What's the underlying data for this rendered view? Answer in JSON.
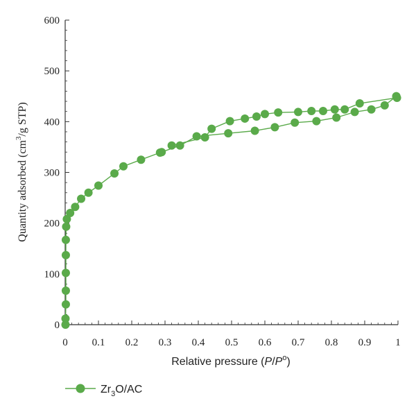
{
  "chart_data": {
    "type": "scatter",
    "xlabel_main": "Relative pressure (",
    "xlabel_p": "P",
    "xlabel_slash": "/",
    "xlabel_p0": "P",
    "xlabel_sup": "o",
    "xlabel_close": ")",
    "ylabel_main": "Quantity adsorbed (cm",
    "ylabel_sup": "3",
    "ylabel_rest": "/g STP)",
    "xlim": [
      0,
      1
    ],
    "ylim": [
      0,
      600
    ],
    "xticks": [
      0,
      0.1,
      0.2,
      0.3,
      0.4,
      0.5,
      0.6,
      0.7,
      0.8,
      0.9,
      1
    ],
    "xtick_labels": [
      "0",
      "0.1",
      "0.2",
      "0.3",
      "0.4",
      "0.5",
      "0.6",
      "0.7",
      "0.8",
      "0.9",
      "1"
    ],
    "yticks": [
      0,
      100,
      200,
      300,
      400,
      500,
      600
    ],
    "ytick_labels": [
      "0",
      "100",
      "200",
      "300",
      "400",
      "500",
      "600"
    ],
    "grid": false,
    "legend_position": "bottom-left",
    "series": [
      {
        "name_main": "Zr",
        "name_sub": "3",
        "name_rest": "O/AC",
        "color": "#5aaa4a",
        "adsorption": [
          [
            0.001,
            0
          ],
          [
            0.001,
            12
          ],
          [
            0.002,
            40
          ],
          [
            0.002,
            67
          ],
          [
            0.002,
            102
          ],
          [
            0.002,
            137
          ],
          [
            0.002,
            167
          ],
          [
            0.003,
            193
          ],
          [
            0.005,
            208
          ],
          [
            0.015,
            220
          ],
          [
            0.03,
            232
          ],
          [
            0.048,
            248
          ],
          [
            0.07,
            260
          ],
          [
            0.1,
            274
          ],
          [
            0.148,
            298
          ],
          [
            0.175,
            312
          ],
          [
            0.228,
            325
          ],
          [
            0.285,
            339
          ],
          [
            0.29,
            340
          ],
          [
            0.345,
            353
          ],
          [
            0.395,
            371
          ],
          [
            0.49,
            377
          ],
          [
            0.57,
            382
          ],
          [
            0.63,
            389
          ],
          [
            0.69,
            398
          ],
          [
            0.755,
            401
          ],
          [
            0.815,
            408
          ],
          [
            0.87,
            419
          ],
          [
            0.92,
            424
          ],
          [
            0.96,
            432
          ],
          [
            0.995,
            450
          ]
        ],
        "desorption": [
          [
            0.995,
            450
          ],
          [
            0.997,
            447
          ],
          [
            0.885,
            436
          ],
          [
            0.84,
            424
          ],
          [
            0.81,
            424
          ],
          [
            0.775,
            421
          ],
          [
            0.74,
            421
          ],
          [
            0.7,
            419
          ],
          [
            0.64,
            418
          ],
          [
            0.6,
            415
          ],
          [
            0.575,
            410
          ],
          [
            0.54,
            406
          ],
          [
            0.495,
            401
          ],
          [
            0.44,
            386
          ],
          [
            0.42,
            369
          ],
          [
            0.32,
            353
          ]
        ]
      }
    ]
  }
}
